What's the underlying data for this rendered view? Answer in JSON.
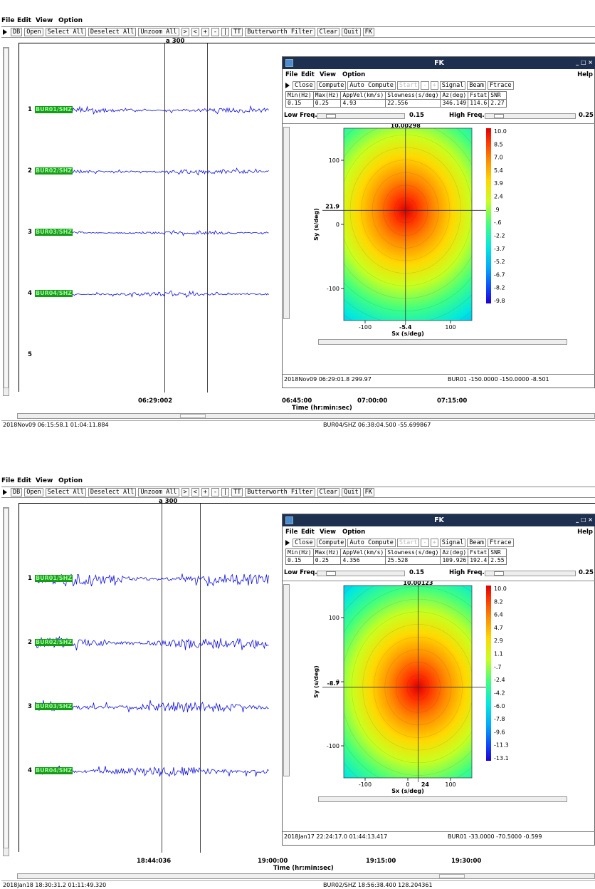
{
  "menu": [
    "File",
    "Edit",
    "View",
    "Option"
  ],
  "toolbar": [
    "DB",
    "Open",
    "Select All",
    "Deselect All",
    "Unzoom All",
    ">",
    "<",
    "+",
    "-",
    "|",
    "TT",
    "Butterworth Filter",
    "Clear",
    "Quit",
    "FK"
  ],
  "fk_menu": [
    "File",
    "Edit",
    "View",
    "Option"
  ],
  "fk_help": "Help",
  "fk_title": "FK",
  "fk_window_buttons": "_ □ ×",
  "fk_toolbar": [
    "Close",
    "Compute",
    "Auto Compute",
    "Start",
    "-",
    "+",
    "Signal",
    "Beam",
    "Ftrace"
  ],
  "fk_headers": [
    "Min(Hz)",
    "Max(Hz)",
    "AppVel(km/s)",
    "Slowness(s/deg)",
    "Az(deg)",
    "Fstat",
    "SNR"
  ],
  "fk_labels": {
    "low": "Low Freq.",
    "high": "High Freq.",
    "low_val": "0.15",
    "high_val": "0.25",
    "xlabel": "Sx (s/deg)",
    "ylabel": "Sy (s/deg)"
  },
  "axis_title": "Time (hr:min:sec)",
  "channels": [
    "BUR01/SHZ",
    "BUR02/SHZ",
    "BUR03/SHZ",
    "BUR04/SHZ"
  ],
  "trace_numbers": [
    "1",
    "2",
    "3",
    "4",
    "5"
  ],
  "marker_label": "a 300",
  "panels": [
    {
      "fk_values": [
        "0.15",
        "0.25",
        "4.93",
        "22.556",
        "346.149",
        "114.6",
        "2.27"
      ],
      "peak_label": "10.00298",
      "y_peak": "21.9",
      "x_peak": "-5.4",
      "x_ticks": [
        "-100",
        "100"
      ],
      "y_ticks": [
        "100",
        "0",
        "-100"
      ],
      "colorbar": [
        "10.0",
        "8.5",
        "7.0",
        "5.4",
        "3.9",
        "2.4",
        ".9",
        "-.6",
        "-2.2",
        "-3.7",
        "-5.2",
        "-6.7",
        "-8.2",
        "-9.8"
      ],
      "fk_status_left": "2018Nov09 06:29:01.8   299.97",
      "fk_status_right": "BUR01  -150.0000  -150.0000  -8.501",
      "time_ticks": [
        "06:29:002",
        "06:45:00",
        "07:00:00",
        "07:15:00"
      ],
      "status_left": "2018Nov09 06:15:58.1   01:04:11.884",
      "status_right": "BUR04/SHZ  06:38:04.500  -55.699867",
      "peak": {
        "sx": -5.4,
        "sy": 21.9
      },
      "trace_amp": [
        1.0,
        0.9,
        0.6,
        0.8
      ],
      "show_trace5": true
    },
    {
      "fk_values": [
        "0.15",
        "0.25",
        "4.356",
        "25.528",
        "109.926",
        "192.4",
        "2.55"
      ],
      "peak_label": "10.00123",
      "y_peak": "-8.7",
      "x_peak": "24",
      "x_ticks": [
        "-100",
        "0",
        "100"
      ],
      "y_ticks": [
        "100",
        "0",
        "-100"
      ],
      "colorbar": [
        "10.0",
        "8.2",
        "6.4",
        "4.7",
        "2.9",
        "1.1",
        "-.7",
        "-2.4",
        "-4.2",
        "-6.0",
        "-7.8",
        "-9.6",
        "-11.3",
        "-13.1"
      ],
      "fk_status_left": "2018Jan17 22:24:17.0   01:44:13.417",
      "fk_status_right": "BUR01  -33.0000  -70.5000  -0.599",
      "time_ticks": [
        "18:44:036",
        "19:00:00",
        "19:15:00",
        "19:30:00"
      ],
      "status_left": "2018Jan18 18:30:31.2   01:11:49.320",
      "status_right": "BUR02/SHZ  18:56:38.400  128.204361",
      "peak": {
        "sx": 24,
        "sy": -8.7
      },
      "trace_amp": [
        2.2,
        2.2,
        2.2,
        2.0
      ],
      "show_trace5": false
    }
  ]
}
